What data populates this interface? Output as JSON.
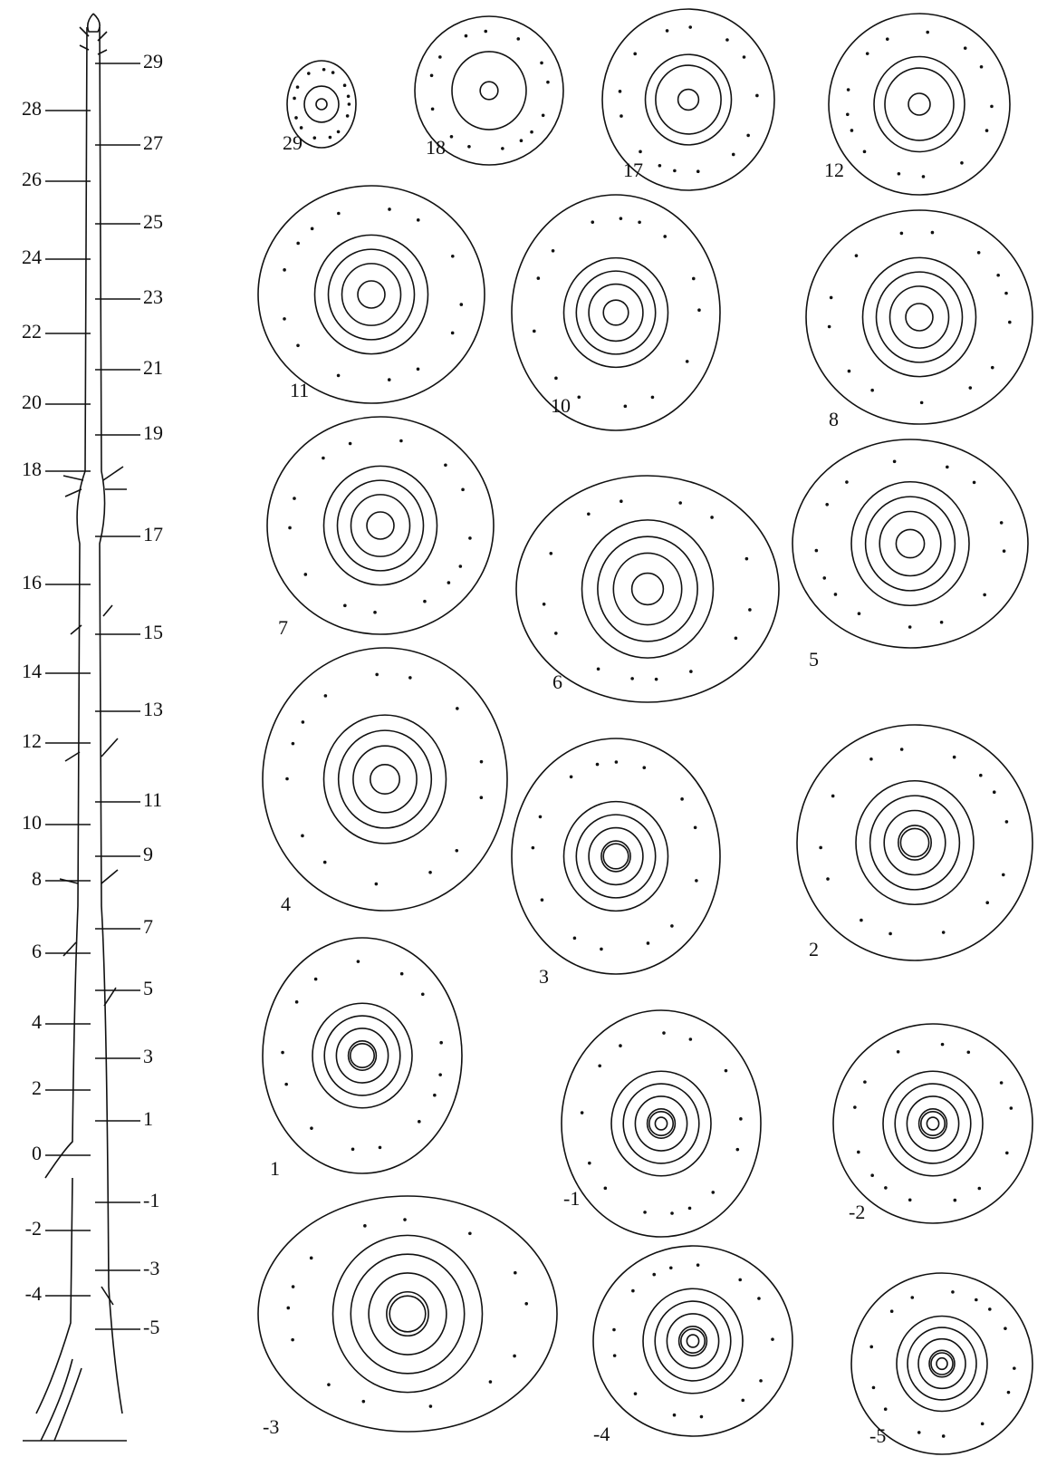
{
  "stem_labels": [
    "29",
    "28",
    "27",
    "26",
    "25",
    "24",
    "23",
    "22",
    "21",
    "20",
    "19",
    "18",
    "17",
    "16",
    "15",
    "14",
    "13",
    "12",
    "11",
    "10",
    "9",
    "8",
    "7",
    "6",
    "5",
    "4",
    "3",
    "2",
    "1",
    "0",
    "-1",
    "-2",
    "-3",
    "-4",
    "-5"
  ],
  "sections": [
    "29",
    "18",
    "17",
    "12",
    "11",
    "10",
    "8",
    "7",
    "6",
    "5",
    "4",
    "3",
    "2",
    "1",
    "-1",
    "-2",
    "-3",
    "-4",
    "-5"
  ]
}
